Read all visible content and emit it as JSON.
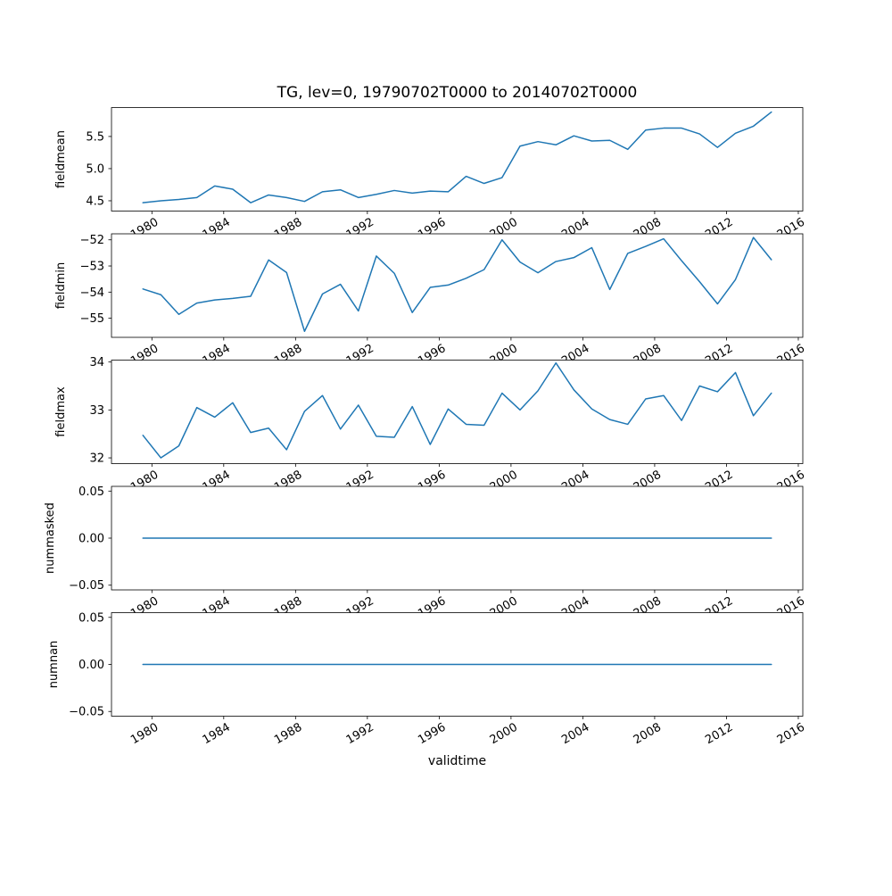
{
  "figure": {
    "title": "TG, lev=0, 19790702T0000 to 20140702T0000",
    "xlabel": "validtime",
    "line_color": "#1f77b4",
    "background": "#ffffff",
    "spine_color": "#000000"
  },
  "chart_data": {
    "type": "line",
    "title": "TG, lev=0, 19790702T0000 to 20140702T0000",
    "xlabel": "validtime",
    "grid": false,
    "legend": "none",
    "x_years": [
      1979,
      1980,
      1981,
      1982,
      1983,
      1984,
      1985,
      1986,
      1987,
      1988,
      1989,
      1990,
      1991,
      1992,
      1993,
      1994,
      1995,
      1996,
      1997,
      1998,
      1999,
      2000,
      2001,
      2002,
      2003,
      2004,
      2005,
      2006,
      2007,
      2008,
      2009,
      2010,
      2011,
      2012,
      2013,
      2014
    ],
    "x_offset": 0.5,
    "xlim": [
      1977.75,
      2016.25
    ],
    "xticks": {
      "values": [
        1980,
        1984,
        1988,
        1992,
        1996,
        2000,
        2004,
        2008,
        2012,
        2016
      ],
      "labels": [
        "1980",
        "1984",
        "1988",
        "1992",
        "1996",
        "2000",
        "2004",
        "2008",
        "2012",
        "2016"
      ]
    },
    "subplots": [
      {
        "name": "fieldmean",
        "ylabel": "fieldmean",
        "ylim": [
          4.34,
          5.95
        ],
        "yticks": {
          "values": [
            4.5,
            5.0,
            5.5
          ],
          "labels": [
            "4.5",
            "5.0",
            "5.5"
          ]
        },
        "values": [
          4.47,
          4.5,
          4.52,
          4.55,
          4.73,
          4.68,
          4.47,
          4.59,
          4.55,
          4.49,
          4.64,
          4.67,
          4.55,
          4.6,
          4.66,
          4.62,
          4.65,
          4.64,
          4.88,
          4.77,
          4.86,
          5.35,
          5.42,
          5.37,
          5.51,
          5.43,
          5.44,
          5.3,
          5.6,
          5.63,
          5.63,
          5.54,
          5.33,
          5.55,
          5.66,
          5.88
        ]
      },
      {
        "name": "fieldmin",
        "ylabel": "fieldmin",
        "ylim": [
          -55.73,
          -51.77
        ],
        "yticks": {
          "values": [
            -52,
            -53,
            -54,
            -55
          ],
          "labels": [
            "−52",
            "−53",
            "−54",
            "−55"
          ]
        },
        "values": [
          -53.88,
          -54.1,
          -54.85,
          -54.42,
          -54.3,
          -54.24,
          -54.16,
          -52.77,
          -53.25,
          -55.5,
          -54.07,
          -53.7,
          -54.72,
          -52.62,
          -53.28,
          -54.78,
          -53.82,
          -53.73,
          -53.47,
          -53.14,
          -52.0,
          -52.85,
          -53.26,
          -52.83,
          -52.68,
          -52.3,
          -53.9,
          -52.52,
          -52.25,
          -51.96,
          -52.8,
          -53.6,
          -54.45,
          -53.52,
          -51.91,
          -52.76
        ]
      },
      {
        "name": "fieldmax",
        "ylabel": "fieldmax",
        "ylim": [
          31.88,
          34.04
        ],
        "yticks": {
          "values": [
            32,
            33,
            34
          ],
          "labels": [
            "32",
            "33",
            "34"
          ]
        },
        "values": [
          32.47,
          32.0,
          32.25,
          33.05,
          32.85,
          33.15,
          32.53,
          32.62,
          32.17,
          32.97,
          33.3,
          32.6,
          33.1,
          32.45,
          32.43,
          33.07,
          32.28,
          33.02,
          32.7,
          32.68,
          33.35,
          33.0,
          33.4,
          33.98,
          33.42,
          33.02,
          32.8,
          32.7,
          33.23,
          33.3,
          32.78,
          33.5,
          33.38,
          33.78,
          32.88,
          33.35
        ]
      },
      {
        "name": "nummasked",
        "ylabel": "nummasked",
        "ylim": [
          -0.055,
          0.055
        ],
        "yticks": {
          "values": [
            0.05,
            0.0,
            -0.05
          ],
          "labels": [
            "0.05",
            "0.00",
            "−0.05"
          ]
        },
        "values": [
          0,
          0,
          0,
          0,
          0,
          0,
          0,
          0,
          0,
          0,
          0,
          0,
          0,
          0,
          0,
          0,
          0,
          0,
          0,
          0,
          0,
          0,
          0,
          0,
          0,
          0,
          0,
          0,
          0,
          0,
          0,
          0,
          0,
          0,
          0,
          0
        ]
      },
      {
        "name": "numnan",
        "ylabel": "numnan",
        "ylim": [
          -0.055,
          0.055
        ],
        "yticks": {
          "values": [
            0.05,
            0.0,
            -0.05
          ],
          "labels": [
            "0.05",
            "0.00",
            "−0.05"
          ]
        },
        "values": [
          0,
          0,
          0,
          0,
          0,
          0,
          0,
          0,
          0,
          0,
          0,
          0,
          0,
          0,
          0,
          0,
          0,
          0,
          0,
          0,
          0,
          0,
          0,
          0,
          0,
          0,
          0,
          0,
          0,
          0,
          0,
          0,
          0,
          0,
          0,
          0
        ]
      }
    ]
  }
}
